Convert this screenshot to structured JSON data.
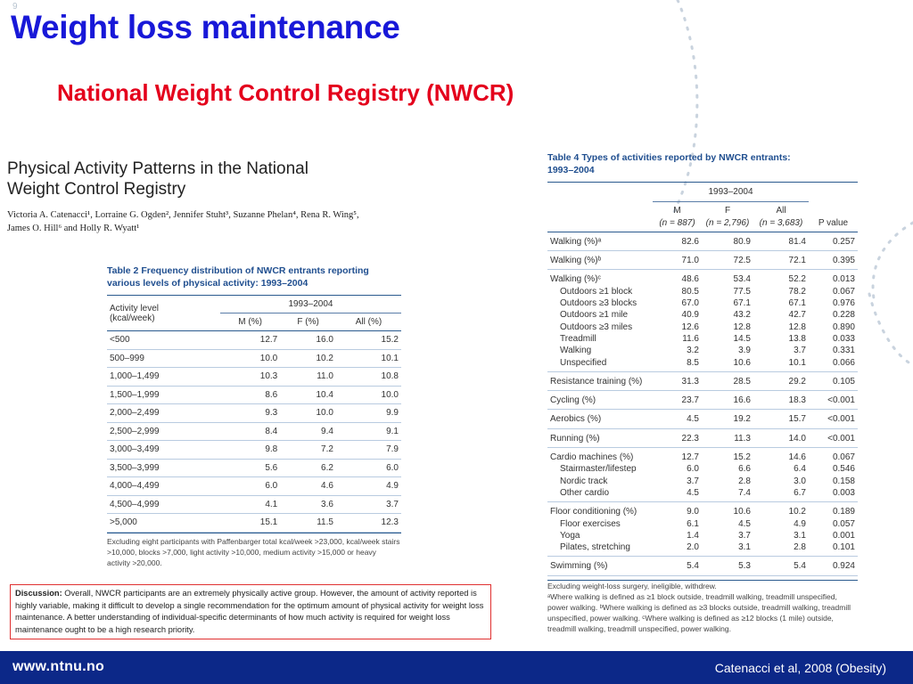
{
  "slide_number": "9",
  "title": "Weight loss maintenance",
  "subtitle": "National Weight Control Registry (NWCR)",
  "paper": {
    "title_line1": "Physical Activity Patterns in the National",
    "title_line2": "Weight Control Registry",
    "authors_line1": "Victoria A. Catenacci¹, Lorraine G. Ogden², Jennifer Stuht³, Suzanne Phelan⁴, Rena R. Wing⁵,",
    "authors_line2": "James O. Hill⁶ and Holly R. Wyatt¹"
  },
  "table2": {
    "caption_line1": "Table 2  Frequency distribution of NWCR entrants reporting",
    "caption_line2": "various levels of physical activity: 1993–2004",
    "col_activity_line1": "Activity level",
    "col_activity_line2": "(kcal/week)",
    "period": "1993–2004",
    "col_m": "M (%)",
    "col_f": "F (%)",
    "col_all": "All (%)",
    "rows": [
      {
        "level": "<500",
        "m": "12.7",
        "f": "16.0",
        "all": "15.2"
      },
      {
        "level": "500–999",
        "m": "10.0",
        "f": "10.2",
        "all": "10.1"
      },
      {
        "level": "1,000–1,499",
        "m": "10.3",
        "f": "11.0",
        "all": "10.8"
      },
      {
        "level": "1,500–1,999",
        "m": "8.6",
        "f": "10.4",
        "all": "10.0"
      },
      {
        "level": "2,000–2,499",
        "m": "9.3",
        "f": "10.0",
        "all": "9.9"
      },
      {
        "level": "2,500–2,999",
        "m": "8.4",
        "f": "9.4",
        "all": "9.1"
      },
      {
        "level": "3,000–3,499",
        "m": "9.8",
        "f": "7.2",
        "all": "7.9"
      },
      {
        "level": "3,500–3,999",
        "m": "5.6",
        "f": "6.2",
        "all": "6.0"
      },
      {
        "level": "4,000–4,499",
        "m": "6.0",
        "f": "4.6",
        "all": "4.9"
      },
      {
        "level": "4,500–4,999",
        "m": "4.1",
        "f": "3.6",
        "all": "3.7"
      },
      {
        "level": ">5,000",
        "m": "15.1",
        "f": "11.5",
        "all": "12.3"
      }
    ],
    "footnote": "Excluding eight participants with Paffenbarger total kcal/week >23,000, kcal/week stairs >10,000, blocks >7,000, light activity >10,000, medium activity >15,000 or heavy activity >20,000."
  },
  "table4": {
    "caption_line1": "Table 4  Types of activities reported by NWCR entrants:",
    "caption_line2": "1993–2004",
    "period": "1993–2004",
    "col_m": "M",
    "col_m_n": "(n = 887)",
    "col_f": "F",
    "col_f_n": "(n = 2,796)",
    "col_all": "All",
    "col_all_n": "(n = 3,683)",
    "col_p": "P value",
    "groups": [
      {
        "rows": [
          {
            "label": "Walking (%)ᵃ",
            "m": "82.6",
            "f": "80.9",
            "all": "81.4",
            "p": "0.257"
          }
        ]
      },
      {
        "rows": [
          {
            "label": "Walking (%)ᵇ",
            "m": "71.0",
            "f": "72.5",
            "all": "72.1",
            "p": "0.395"
          }
        ]
      },
      {
        "rows": [
          {
            "label": "Walking (%)ᶜ",
            "m": "48.6",
            "f": "53.4",
            "all": "52.2",
            "p": "0.013"
          },
          {
            "label": "Outdoors ≥1 block",
            "sub": true,
            "m": "80.5",
            "f": "77.5",
            "all": "78.2",
            "p": "0.067"
          },
          {
            "label": "Outdoors ≥3 blocks",
            "sub": true,
            "m": "67.0",
            "f": "67.1",
            "all": "67.1",
            "p": "0.976"
          },
          {
            "label": "Outdoors ≥1 mile",
            "sub": true,
            "m": "40.9",
            "f": "43.2",
            "all": "42.7",
            "p": "0.228"
          },
          {
            "label": "Outdoors ≥3 miles",
            "sub": true,
            "m": "12.6",
            "f": "12.8",
            "all": "12.8",
            "p": "0.890"
          },
          {
            "label": "Treadmill",
            "sub": true,
            "m": "11.6",
            "f": "14.5",
            "all": "13.8",
            "p": "0.033"
          },
          {
            "label": "Walking",
            "sub": true,
            "m": "3.2",
            "f": "3.9",
            "all": "3.7",
            "p": "0.331"
          },
          {
            "label": "Unspecified",
            "sub": true,
            "m": "8.5",
            "f": "10.6",
            "all": "10.1",
            "p": "0.066"
          }
        ]
      },
      {
        "rows": [
          {
            "label": "Resistance training (%)",
            "m": "31.3",
            "f": "28.5",
            "all": "29.2",
            "p": "0.105"
          }
        ]
      },
      {
        "rows": [
          {
            "label": "Cycling (%)",
            "m": "23.7",
            "f": "16.6",
            "all": "18.3",
            "p": "<0.001"
          }
        ]
      },
      {
        "rows": [
          {
            "label": "Aerobics (%)",
            "m": "4.5",
            "f": "19.2",
            "all": "15.7",
            "p": "<0.001"
          }
        ]
      },
      {
        "rows": [
          {
            "label": "Running (%)",
            "m": "22.3",
            "f": "11.3",
            "all": "14.0",
            "p": "<0.001"
          }
        ]
      },
      {
        "rows": [
          {
            "label": "Cardio machines (%)",
            "m": "12.7",
            "f": "15.2",
            "all": "14.6",
            "p": "0.067"
          },
          {
            "label": "Stairmaster/lifestep",
            "sub": true,
            "m": "6.0",
            "f": "6.6",
            "all": "6.4",
            "p": "0.546"
          },
          {
            "label": "Nordic track",
            "sub": true,
            "m": "3.7",
            "f": "2.8",
            "all": "3.0",
            "p": "0.158"
          },
          {
            "label": "Other cardio",
            "sub": true,
            "m": "4.5",
            "f": "7.4",
            "all": "6.7",
            "p": "0.003"
          }
        ]
      },
      {
        "rows": [
          {
            "label": "Floor conditioning (%)",
            "m": "9.0",
            "f": "10.6",
            "all": "10.2",
            "p": "0.189"
          },
          {
            "label": "Floor exercises",
            "sub": true,
            "m": "6.1",
            "f": "4.5",
            "all": "4.9",
            "p": "0.057"
          },
          {
            "label": "Yoga",
            "sub": true,
            "m": "1.4",
            "f": "3.7",
            "all": "3.1",
            "p": "0.001"
          },
          {
            "label": "Pilates, stretching",
            "sub": true,
            "m": "2.0",
            "f": "3.1",
            "all": "2.8",
            "p": "0.101"
          }
        ]
      },
      {
        "rows": [
          {
            "label": "Swimming (%)",
            "m": "5.4",
            "f": "5.3",
            "all": "5.4",
            "p": "0.924"
          }
        ]
      }
    ],
    "note_exclusion": "Excluding weight-loss surgery, ineligible, withdrew.",
    "note_definitions": "ᵃWhere walking is defined as ≥1 block outside, treadmill walking, treadmill unspecified, power walking. ᵇWhere walking is defined as ≥3 blocks outside, treadmill walking, treadmill unspecified, power walking. ᶜWhere walking is defined as ≥12 blocks (1 mile) outside, treadmill walking, treadmill unspecified, power walking."
  },
  "discussion": {
    "label": "Discussion:",
    "text": " Overall, NWCR participants are an extremely physically active group. However, the amount of activity reported is highly variable, making it difficult to develop a single recommendation for the optimum amount of physical activity for weight loss maintenance. A better understanding of individual-specific determinants of how much activity is required for weight loss maintenance ought to be a high research priority."
  },
  "footer": {
    "url": "www.ntnu.no",
    "citation": "Catenacci et al, 2008 (Obesity)"
  },
  "colors": {
    "title": "#1818d8",
    "subtitle": "#e4001c",
    "footer_bg": "#0c2888",
    "table_caption": "#1f4e8f",
    "discussion_border": "#e03030"
  }
}
